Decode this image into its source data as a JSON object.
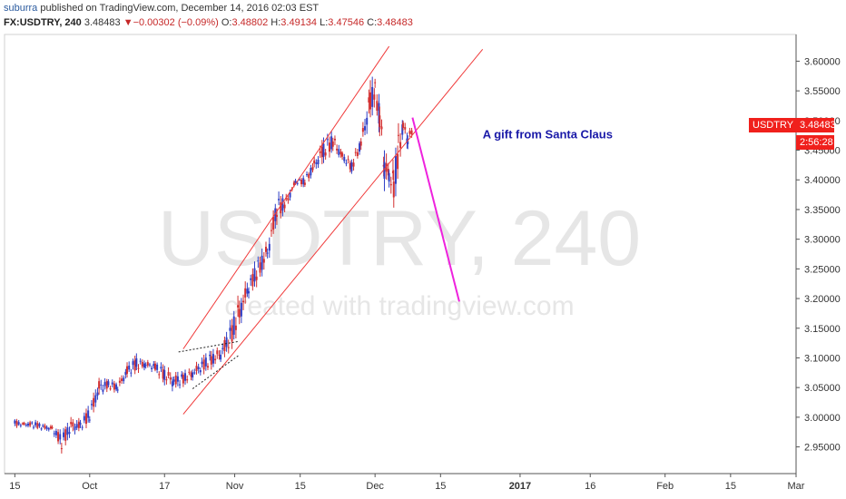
{
  "header": {
    "publisher": "suburra",
    "published_text": "published on TradingView.com, December 14, 2016 02:03 EST",
    "symbol": "FX:USDTRY, 240",
    "last": "3.48483",
    "change": "−0.00302 (−0.09%)",
    "open_label": "O:",
    "open": "3.48802",
    "high_label": "H:",
    "high": "3.49134",
    "low_label": "L:",
    "low": "3.47546",
    "close_label": "C:",
    "close": "3.48483"
  },
  "badges": {
    "symbol": "USDTRY",
    "price": "3.48483",
    "countdown": "2:56:28"
  },
  "watermark": {
    "symbol": "USDTRY, 240",
    "credit": "created with tradingview.com"
  },
  "annotation": "A gift from Santa Claus",
  "colors": {
    "up": "#2f3fc6",
    "down": "#d32f2f",
    "channel": "#f03a3a",
    "projection": "#ee22dd",
    "annotation": "#1a1aa8",
    "badge": "#f0201c"
  },
  "chart_data": {
    "type": "candlestick",
    "y_ticks": [
      "3.60000",
      "3.55000",
      "3.50000",
      "3.45000",
      "3.40000",
      "3.35000",
      "3.30000",
      "3.25000",
      "3.20000",
      "3.15000",
      "3.10000",
      "3.05000",
      "3.00000",
      "2.95000"
    ],
    "x_ticks": [
      "15",
      "Oct",
      "17",
      "Nov",
      "15",
      "Dec",
      "15",
      "2017",
      "16",
      "Feb",
      "15",
      "Mar"
    ],
    "ylim": [
      2.905,
      3.645
    ],
    "x_unit": "day index (day 0 = first tick \"15\")",
    "xlim": [
      -2.2,
      167
    ],
    "tick_days": [
      0,
      16,
      32,
      47,
      61,
      77,
      91,
      108,
      123,
      139,
      153,
      167
    ],
    "series": [
      {
        "values": [
          [
            0,
            2.983,
            2.996
          ],
          [
            2,
            2.985,
            2.991
          ],
          [
            4,
            2.982,
            2.994
          ],
          [
            6,
            2.979,
            2.988
          ],
          [
            8,
            2.976,
            2.986
          ],
          [
            10,
            2.945,
            2.972
          ],
          [
            12,
            2.972,
            2.998
          ],
          [
            14,
            2.978,
            2.994
          ],
          [
            16,
            2.992,
            3.018
          ],
          [
            18,
            3.035,
            3.065
          ],
          [
            20,
            3.048,
            3.062
          ],
          [
            22,
            3.042,
            3.058
          ],
          [
            24,
            3.068,
            3.088
          ],
          [
            26,
            3.078,
            3.102
          ],
          [
            28,
            3.082,
            3.095
          ],
          [
            30,
            3.078,
            3.092
          ],
          [
            32,
            3.058,
            3.085
          ],
          [
            34,
            3.048,
            3.072
          ],
          [
            36,
            3.055,
            3.075
          ],
          [
            38,
            3.065,
            3.082
          ],
          [
            40,
            3.075,
            3.098
          ],
          [
            42,
            3.085,
            3.11
          ],
          [
            44,
            3.095,
            3.118
          ],
          [
            46,
            3.115,
            3.155
          ],
          [
            48,
            3.155,
            3.202
          ],
          [
            50,
            3.205,
            3.232
          ],
          [
            52,
            3.232,
            3.268
          ],
          [
            54,
            3.262,
            3.295
          ],
          [
            56,
            3.332,
            3.372
          ],
          [
            58,
            3.352,
            3.372
          ],
          [
            60,
            3.392,
            3.402
          ],
          [
            62,
            3.39,
            3.405
          ],
          [
            64,
            3.415,
            3.435
          ],
          [
            66,
            3.432,
            3.468
          ],
          [
            68,
            3.452,
            3.478
          ],
          [
            70,
            3.432,
            3.448
          ],
          [
            72,
            3.412,
            3.432
          ],
          [
            74,
            3.452,
            3.472
          ],
          [
            76,
            3.502,
            3.565
          ],
          [
            77,
            3.535,
            3.568
          ],
          [
            78,
            3.482,
            3.528
          ],
          [
            79,
            3.392,
            3.452
          ],
          [
            80,
            3.392,
            3.422
          ],
          [
            81,
            3.362,
            3.422
          ],
          [
            82,
            3.422,
            3.482
          ],
          [
            83,
            3.482,
            3.502
          ],
          [
            84,
            3.452,
            3.482
          ],
          [
            85,
            3.476,
            3.491
          ]
        ]
      }
    ],
    "channel_upper": [
      [
        36,
        3.115
      ],
      [
        80,
        3.625
      ]
    ],
    "channel_lower": [
      [
        36,
        3.005
      ],
      [
        100,
        3.62
      ]
    ],
    "triangle_upper": [
      [
        35,
        3.11
      ],
      [
        48,
        3.128
      ]
    ],
    "triangle_lower": [
      [
        38,
        3.048
      ],
      [
        48,
        3.105
      ]
    ],
    "projection": [
      [
        85,
        3.505
      ],
      [
        95,
        3.195
      ]
    ],
    "annotation_at": [
      100,
      3.47
    ]
  }
}
